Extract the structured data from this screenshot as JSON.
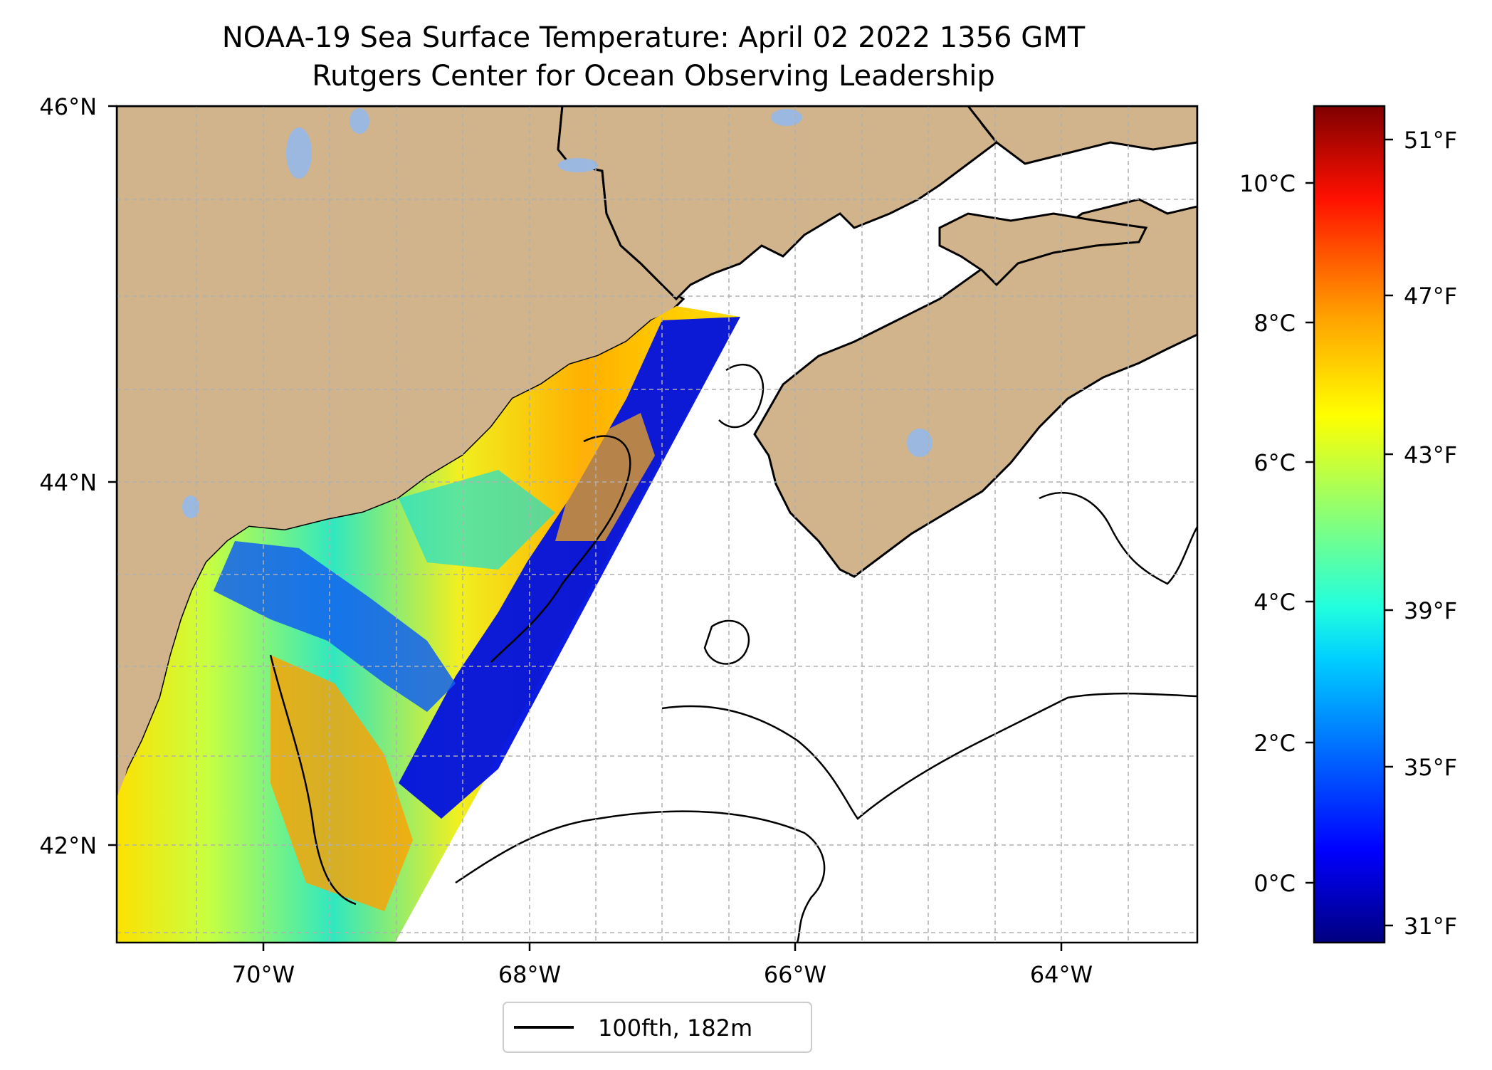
{
  "title": {
    "line1": "NOAA-19 Sea Surface Temperature: April 02 2022 1356 GMT",
    "line2": "Rutgers Center for Ocean Observing Leadership"
  },
  "map": {
    "lon_range": [
      -71.1,
      -63.0
    ],
    "lat_range": [
      41.5,
      46.0
    ],
    "lat_ticks": [
      {
        "value": 46,
        "label": "46°N"
      },
      {
        "value": 44,
        "label": "44°N"
      },
      {
        "value": 42,
        "label": "42°N"
      }
    ],
    "lon_ticks": [
      {
        "value": -70,
        "label": "70°W"
      },
      {
        "value": -68,
        "label": "68°W"
      },
      {
        "value": -66,
        "label": "66°W"
      },
      {
        "value": -64,
        "label": "64°W"
      }
    ],
    "colors": {
      "land": "#d2b48c",
      "lake": "#9ab8e0",
      "ocean": "#ffffff",
      "gridline": "#b0b0b0"
    }
  },
  "legend": {
    "label": "100fth, 182m",
    "line_color": "#000000"
  },
  "colorbar": {
    "celsius_range": [
      -0.8,
      11.2
    ],
    "celsius_ticks": [
      {
        "value": 10,
        "label": "10°C"
      },
      {
        "value": 8,
        "label": "8°C"
      },
      {
        "value": 6,
        "label": "6°C"
      },
      {
        "value": 4,
        "label": "4°C"
      },
      {
        "value": 2,
        "label": "2°C"
      },
      {
        "value": 0,
        "label": "0°C"
      }
    ],
    "fahrenheit_ticks": [
      {
        "value": 51,
        "label": "51°F"
      },
      {
        "value": 47,
        "label": "47°F"
      },
      {
        "value": 43,
        "label": "43°F"
      },
      {
        "value": 39,
        "label": "39°F"
      },
      {
        "value": 35,
        "label": "35°F"
      },
      {
        "value": 31,
        "label": "31°F"
      }
    ],
    "colormap": [
      "#00007f",
      "#0000ff",
      "#0080ff",
      "#00ffff",
      "#80ff80",
      "#ffff00",
      "#ff8000",
      "#ff0000",
      "#7f0000"
    ]
  }
}
